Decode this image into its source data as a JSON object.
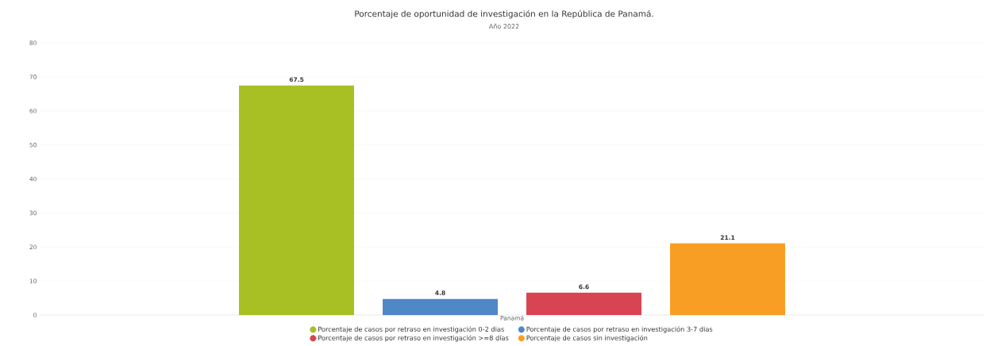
{
  "chart_data": {
    "type": "bar",
    "title": "Porcentaje de oportunidad de investigación en la República de Panamá.",
    "subtitle": "Año 2022",
    "categories": [
      "Panamá"
    ],
    "series": [
      {
        "name": "Porcentaje de casos por retraso en investigación 0-2 dias",
        "color": "#a8c023",
        "values": [
          67.5
        ]
      },
      {
        "name": "Porcentaje de casos por retraso en investigación 3-7 dias",
        "color": "#4f88c6",
        "values": [
          4.8
        ]
      },
      {
        "name": "Porcentaje de casos por retraso en investigación >=8 días",
        "color": "#d94452",
        "values": [
          6.6
        ]
      },
      {
        "name": "Porcentaje de casos sin investigación",
        "color": "#f99e25",
        "values": [
          21.1
        ]
      }
    ],
    "ylim": [
      0,
      80
    ],
    "yticks": [
      0,
      10,
      20,
      30,
      40,
      50,
      60,
      70,
      80
    ],
    "grid": "y",
    "legend": "bottom",
    "data_labels": true
  }
}
